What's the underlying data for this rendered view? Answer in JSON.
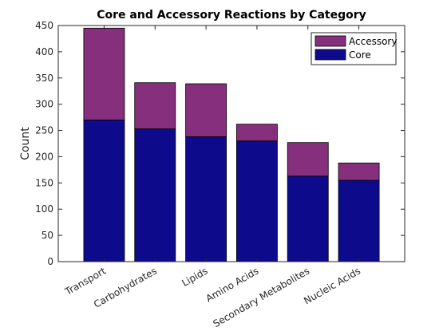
{
  "chart_data": {
    "type": "bar",
    "stacked": true,
    "title": "Core and Accessory Reactions by Category",
    "xlabel": "",
    "ylabel": "Count",
    "categories": [
      "Transport",
      "Carbohydrates",
      "Lipids",
      "Amino Acids",
      "Secondary Metabolites",
      "Nucleic Acids"
    ],
    "series": [
      {
        "name": "Core",
        "color": "#0d0a8c",
        "values": [
          270,
          253,
          238,
          230,
          163,
          155
        ]
      },
      {
        "name": "Accessory",
        "color": "#862f7d",
        "values": [
          175,
          88,
          101,
          32,
          64,
          33
        ]
      }
    ],
    "ylim": [
      0,
      450
    ],
    "yticks": [
      0,
      50,
      100,
      150,
      200,
      250,
      300,
      350,
      400,
      450
    ],
    "legend": {
      "position": "top-right",
      "order": [
        "Accessory",
        "Core"
      ]
    },
    "grid": false
  }
}
